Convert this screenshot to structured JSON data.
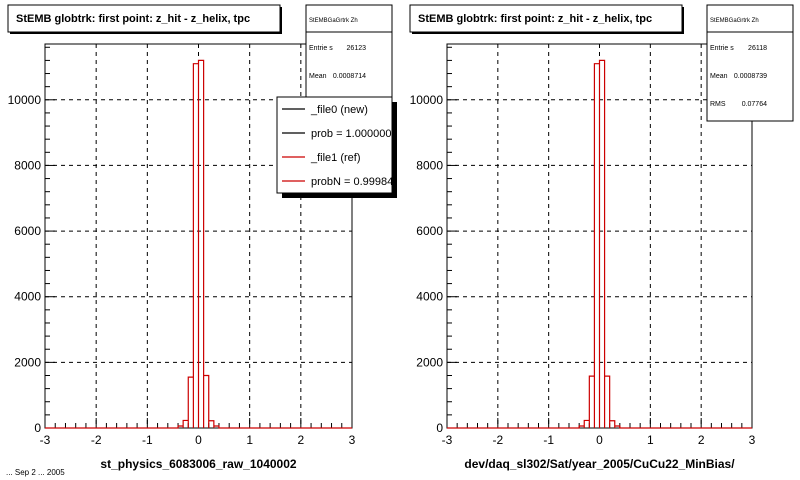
{
  "footer_text": "... Sep 2 ... 2005",
  "chart_data": [
    {
      "type": "histogram",
      "title": "StEMB globtrk: first point: z_hit - z_helix, tpc",
      "xlabel": "st_physics_6083006_raw_1040002",
      "ylabel": "",
      "xlim": [
        -3,
        3
      ],
      "ylim": [
        0,
        11700
      ],
      "x_ticks": [
        -3,
        -2,
        -1,
        0,
        1,
        2,
        3
      ],
      "y_ticks": [
        0,
        2000,
        4000,
        6000,
        8000,
        10000
      ],
      "grid": true,
      "bin_width": 0.1,
      "stats_box": {
        "name": "StEMBGaGrtrk Zh",
        "entries_label": "Entrie s",
        "entries": "26123",
        "mean_label": "Mean",
        "mean": "0.0008714"
      },
      "legend": {
        "placement": "top-right",
        "entries": [
          {
            "label": "_file0 (new)",
            "color": "#000000"
          },
          {
            "label": "prob = 1.000000",
            "color": "#000000"
          },
          {
            "label": "_file1 (ref)",
            "color": "#cc0000"
          },
          {
            "label": "probN = 0.99984",
            "color": "#cc0000"
          }
        ]
      },
      "series": [
        {
          "color": "#cc0000",
          "bins": [
            {
              "x0": -0.4,
              "x1": -0.3,
              "y": 60
            },
            {
              "x0": -0.3,
              "x1": -0.2,
              "y": 230
            },
            {
              "x0": -0.2,
              "x1": -0.1,
              "y": 1550
            },
            {
              "x0": -0.1,
              "x1": 0.0,
              "y": 11100
            },
            {
              "x0": 0.0,
              "x1": 0.1,
              "y": 11200
            },
            {
              "x0": 0.1,
              "x1": 0.2,
              "y": 1600
            },
            {
              "x0": 0.2,
              "x1": 0.3,
              "y": 220
            },
            {
              "x0": 0.3,
              "x1": 0.4,
              "y": 60
            }
          ]
        }
      ]
    },
    {
      "type": "histogram",
      "title": "StEMB globtrk: first point: z_hit - z_helix, tpc",
      "xlabel": "dev/daq_sl302/Sat/year_2005/CuCu22_MinBias/",
      "ylabel": "",
      "xlim": [
        -3,
        3
      ],
      "ylim": [
        0,
        11700
      ],
      "x_ticks": [
        -3,
        -2,
        -1,
        0,
        1,
        2,
        3
      ],
      "y_ticks": [
        0,
        2000,
        4000,
        6000,
        8000,
        10000
      ],
      "grid": true,
      "bin_width": 0.1,
      "stats_box": {
        "name": "StEMBGaGrtrk Zh",
        "entries_label": "Entrie s",
        "entries": "26118",
        "mean_label": "Mean",
        "mean": "0.0008739",
        "rms_label": "RMS",
        "rms": "0.07764"
      },
      "series": [
        {
          "color": "#cc0000",
          "bins": [
            {
              "x0": -0.4,
              "x1": -0.3,
              "y": 60
            },
            {
              "x0": -0.3,
              "x1": -0.2,
              "y": 230
            },
            {
              "x0": -0.2,
              "x1": -0.1,
              "y": 1580
            },
            {
              "x0": -0.1,
              "x1": 0.0,
              "y": 11100
            },
            {
              "x0": 0.0,
              "x1": 0.1,
              "y": 11200
            },
            {
              "x0": 0.1,
              "x1": 0.2,
              "y": 1580
            },
            {
              "x0": 0.2,
              "x1": 0.3,
              "y": 220
            },
            {
              "x0": 0.3,
              "x1": 0.4,
              "y": 60
            }
          ]
        }
      ]
    }
  ]
}
